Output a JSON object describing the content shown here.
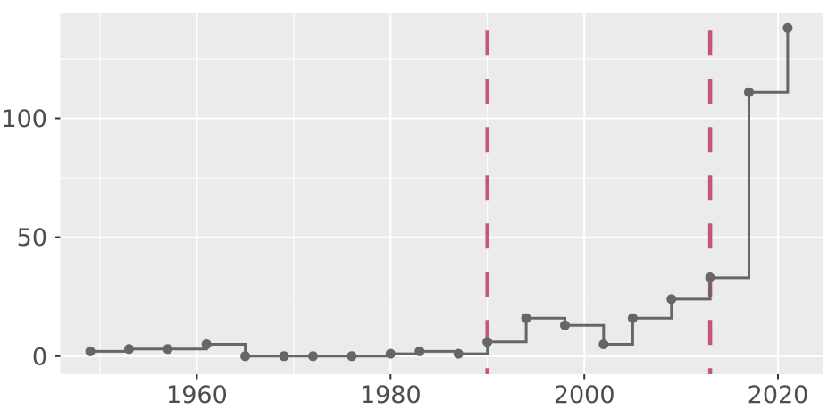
{
  "figure": {
    "background": "#ffffff",
    "panel_background": "#ebebeb",
    "grid_color": "#ffffff",
    "axis_text_color": "#4d4d4d",
    "tick_color": "#333333"
  },
  "chart_data": {
    "type": "line",
    "subtype": "step",
    "step_direction": "hv",
    "title": "",
    "xlabel": "",
    "ylabel": "",
    "x": [
      1949,
      1953,
      1957,
      1961,
      1965,
      1969,
      1972,
      1976,
      1980,
      1983,
      1987,
      1990,
      1994,
      1998,
      2002,
      2005,
      2009,
      2013,
      2017,
      2021
    ],
    "values": [
      2,
      3,
      3,
      5,
      0,
      0,
      0,
      0,
      1,
      2,
      1,
      6,
      16,
      13,
      5,
      16,
      24,
      33,
      111,
      138
    ],
    "points_shown": true,
    "line_color": "#666666",
    "line_width": 3,
    "point_color": "#666666",
    "point_radius": 5.5,
    "vlines": [
      1990,
      2013
    ],
    "vline_color": "#c6537b",
    "vline_style": "dashed",
    "vline_width": 4.5,
    "x_ticks": [
      1960,
      1980,
      2000,
      2020
    ],
    "y_ticks": [
      0,
      50,
      100
    ],
    "x_minor_gridlines": [
      1950,
      1970,
      1990,
      2010
    ],
    "y_minor_gridlines": [
      25,
      75,
      125
    ],
    "xlim": [
      1945.9,
      2024.7
    ],
    "ylim": [
      -7.6,
      144.4
    ],
    "grid": "major-and-minor",
    "legend_position": "none"
  }
}
